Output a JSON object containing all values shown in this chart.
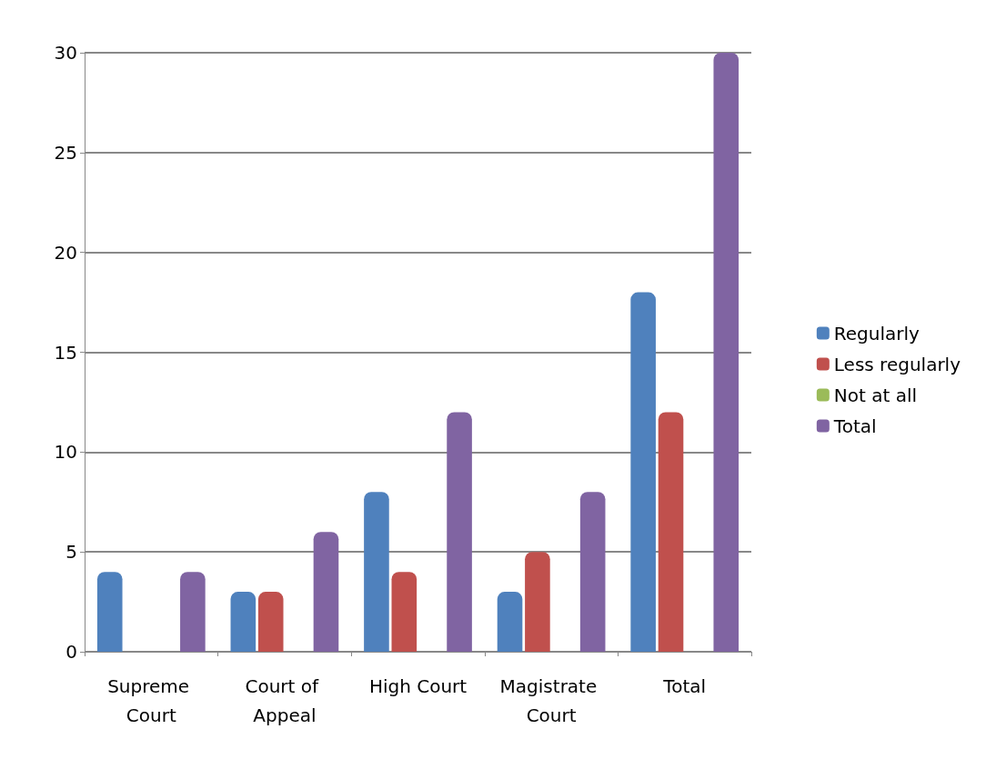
{
  "chart_data": {
    "type": "bar",
    "categories": [
      "Supreme Court",
      "Court of Appeal",
      "High Court",
      "Magistrate Court",
      "Total"
    ],
    "series": [
      {
        "name": "Regularly",
        "color": "#4f81bd",
        "values": [
          4,
          3,
          8,
          3,
          18
        ]
      },
      {
        "name": "Less regularly",
        "color": "#c0504d",
        "values": [
          0,
          3,
          4,
          5,
          12
        ]
      },
      {
        "name": "Not at all",
        "color": "#9bbb59",
        "values": [
          0,
          0,
          0,
          0,
          0
        ]
      },
      {
        "name": "Total",
        "color": "#8064a2",
        "values": [
          4,
          6,
          12,
          8,
          30
        ]
      }
    ],
    "ylim": [
      0,
      30
    ],
    "yticks": [
      0,
      5,
      10,
      15,
      20,
      25,
      30
    ],
    "grid": "y",
    "legend": "right"
  }
}
